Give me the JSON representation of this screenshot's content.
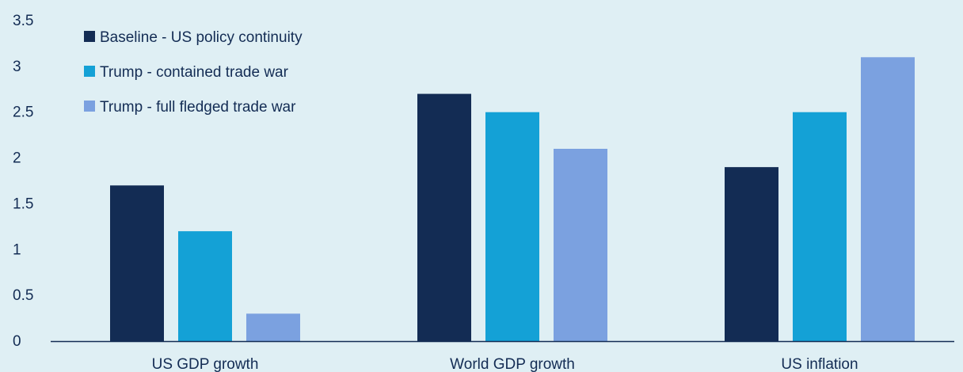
{
  "chart_data": {
    "type": "bar",
    "categories": [
      "US GDP growth",
      "World GDP growth",
      "US inflation"
    ],
    "series": [
      {
        "name": "Baseline - US policy continuity",
        "color": "#132c54",
        "values": [
          1.7,
          2.7,
          1.9
        ]
      },
      {
        "name": "Trump - contained trade war",
        "color": "#14a1d6",
        "values": [
          1.2,
          2.5,
          2.5
        ]
      },
      {
        "name": "Trump - full fledged trade war",
        "color": "#7ba1e0",
        "values": [
          0.3,
          2.1,
          3.1
        ]
      }
    ],
    "yticks": [
      "0",
      "0.5",
      "1",
      "1.5",
      "2",
      "2.5",
      "3",
      "3.5"
    ],
    "ylim": [
      0,
      3.5
    ],
    "grid": false,
    "legend_position": "top-left",
    "axis_color": "#132c54",
    "background": "#dfeff4"
  }
}
